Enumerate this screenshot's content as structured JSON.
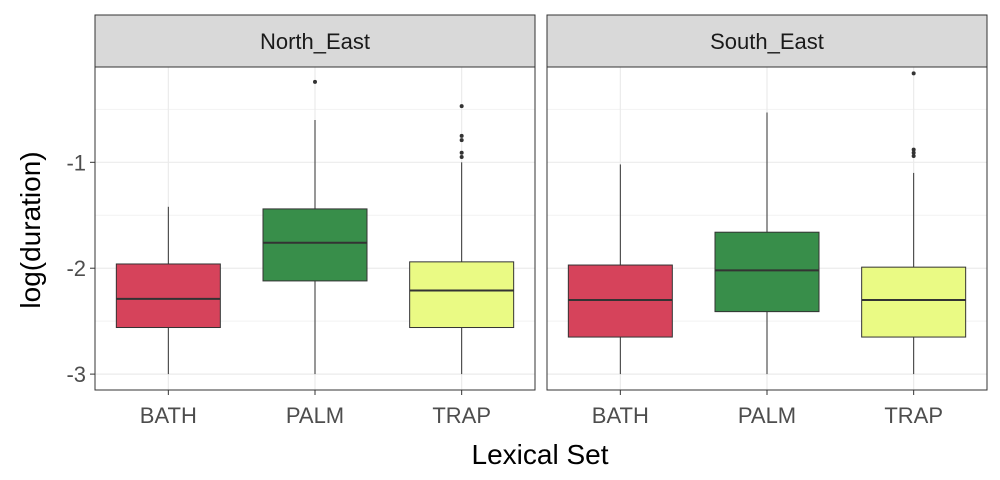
{
  "chart_data": {
    "type": "boxplot",
    "xlabel": "Lexical Set",
    "ylabel": "log(duration)",
    "ylim": [
      -3.15,
      -0.1
    ],
    "yticks": [
      -3,
      -2,
      -1
    ],
    "ytick_labels": [
      "-3",
      "-2",
      "-1"
    ],
    "categories": [
      "BATH",
      "PALM",
      "TRAP"
    ],
    "colors": {
      "BATH": "#D6435B",
      "PALM": "#388E4A",
      "TRAP": "#EAFA84"
    },
    "grid": true,
    "legend": "none",
    "panels": [
      {
        "name": "North_East",
        "boxes": [
          {
            "category": "BATH",
            "whisker_low": -3.0,
            "q1": -2.56,
            "median": -2.29,
            "q3": -1.96,
            "whisker_high": -1.42,
            "outliers": []
          },
          {
            "category": "PALM",
            "whisker_low": -3.0,
            "q1": -2.12,
            "median": -1.76,
            "q3": -1.44,
            "whisker_high": -0.6,
            "outliers": [
              -0.24
            ]
          },
          {
            "category": "TRAP",
            "whisker_low": -3.0,
            "q1": -2.56,
            "median": -2.21,
            "q3": -1.94,
            "whisker_high": -1.0,
            "outliers": [
              -0.47,
              -0.75,
              -0.79,
              -0.91,
              -0.95
            ]
          }
        ]
      },
      {
        "name": "South_East",
        "boxes": [
          {
            "category": "BATH",
            "whisker_low": -3.0,
            "q1": -2.65,
            "median": -2.3,
            "q3": -1.97,
            "whisker_high": -1.02,
            "outliers": []
          },
          {
            "category": "PALM",
            "whisker_low": -3.0,
            "q1": -2.41,
            "median": -2.02,
            "q3": -1.66,
            "whisker_high": -0.53,
            "outliers": []
          },
          {
            "category": "TRAP",
            "whisker_low": -3.0,
            "q1": -2.65,
            "median": -2.3,
            "q3": -1.99,
            "whisker_high": -1.1,
            "outliers": [
              -0.16,
              -0.88,
              -0.91,
              -0.94
            ]
          }
        ]
      }
    ]
  }
}
